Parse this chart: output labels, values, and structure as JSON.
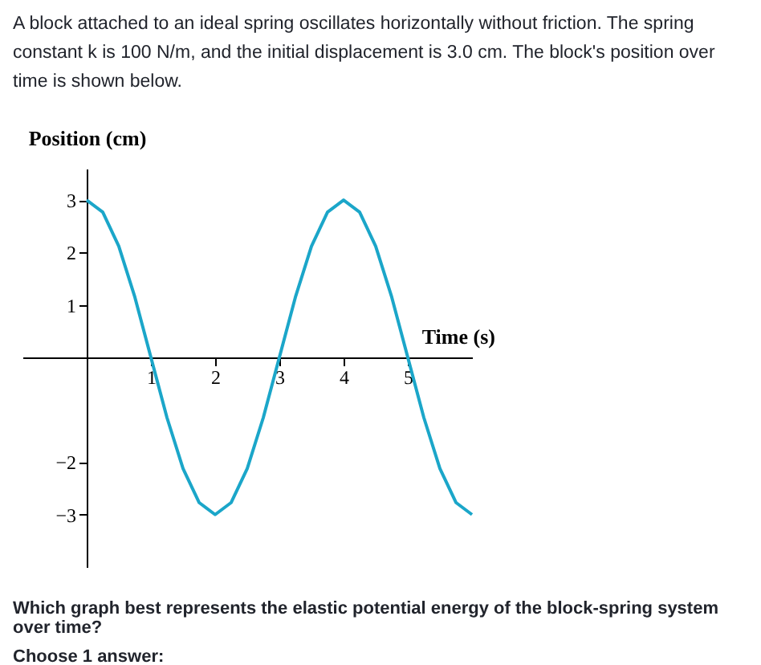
{
  "chart_data": {
    "type": "line",
    "title": "A block attached to an ideal spring oscillates horizontally without friction. The spring constant k is 100 N/m, and the initial displacement is 3.0 cm. The block's position over time is shown below.",
    "xlabel": "Time (s)",
    "ylabel": "Position (cm)",
    "x": [
      0,
      0.25,
      0.5,
      0.75,
      1,
      1.25,
      1.5,
      1.75,
      2,
      2.25,
      2.5,
      2.75,
      3,
      3.25,
      3.5,
      3.75,
      4,
      4.25,
      4.5,
      4.75,
      5,
      5.25,
      5.5,
      5.75,
      6
    ],
    "series": [
      {
        "color": "#1ba6c9",
        "values": [
          3,
          2.77,
          2.12,
          1.15,
          0,
          -1.15,
          -2.12,
          -2.77,
          -3,
          -2.77,
          -2.12,
          -1.15,
          0,
          1.15,
          2.12,
          2.77,
          3,
          2.77,
          2.12,
          1.15,
          0,
          -1.15,
          -2.12,
          -2.77,
          -3
        ]
      }
    ],
    "xlim": [
      -1,
      6
    ],
    "ylim": [
      -4,
      3.6
    ],
    "xticks": [
      1,
      2,
      3,
      4,
      5
    ],
    "yticks": [
      -3,
      -2,
      1,
      2,
      3
    ],
    "grid": false,
    "marker": "none",
    "line_style": "solid",
    "annotations": [
      "Which graph best represents the elastic potential energy of the block-spring system over time?",
      "Choose 1 answer:"
    ]
  }
}
